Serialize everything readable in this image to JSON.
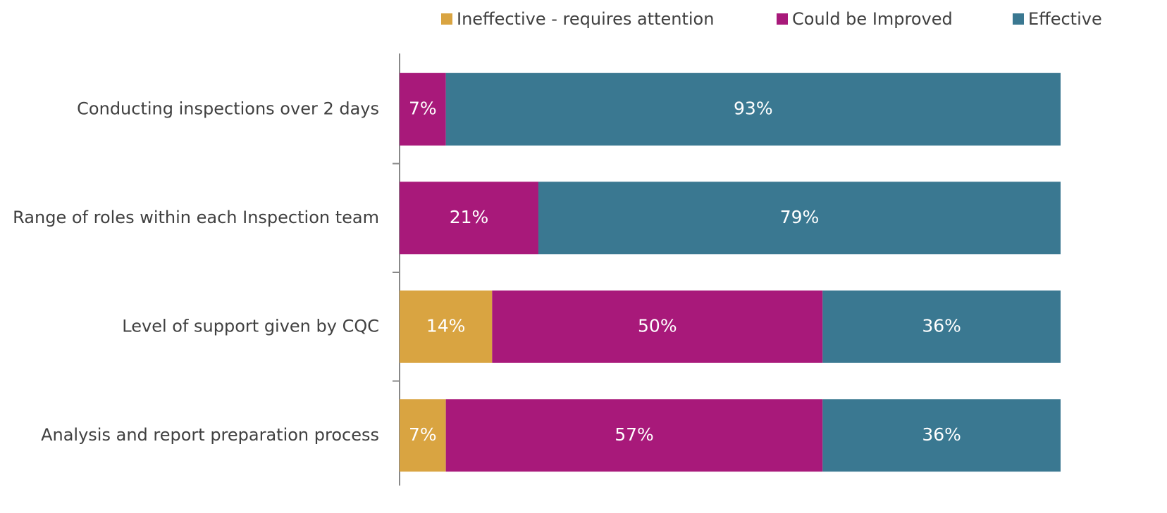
{
  "chart_data": {
    "type": "stacked-bar-horizontal",
    "categories": [
      "Conducting inspections over 2 days",
      "Range of roles within each Inspection team",
      "Level of support given by CQC",
      "Analysis and report preparation process"
    ],
    "series": [
      {
        "name": "Ineffective - requires attention",
        "color": "#d9a441",
        "values": [
          0,
          0,
          14,
          7
        ],
        "value_labels": [
          null,
          null,
          "14%",
          "7%"
        ]
      },
      {
        "name": "Could be Improved",
        "color": "#a8197a",
        "values": [
          7,
          21,
          50,
          57
        ],
        "value_labels": [
          "7%",
          "21%",
          "50%",
          "57%"
        ]
      },
      {
        "name": "Effective",
        "color": "#3a7891",
        "values": [
          93,
          79,
          36,
          36
        ],
        "value_labels": [
          "93%",
          "79%",
          "36%",
          "36%"
        ]
      }
    ]
  }
}
